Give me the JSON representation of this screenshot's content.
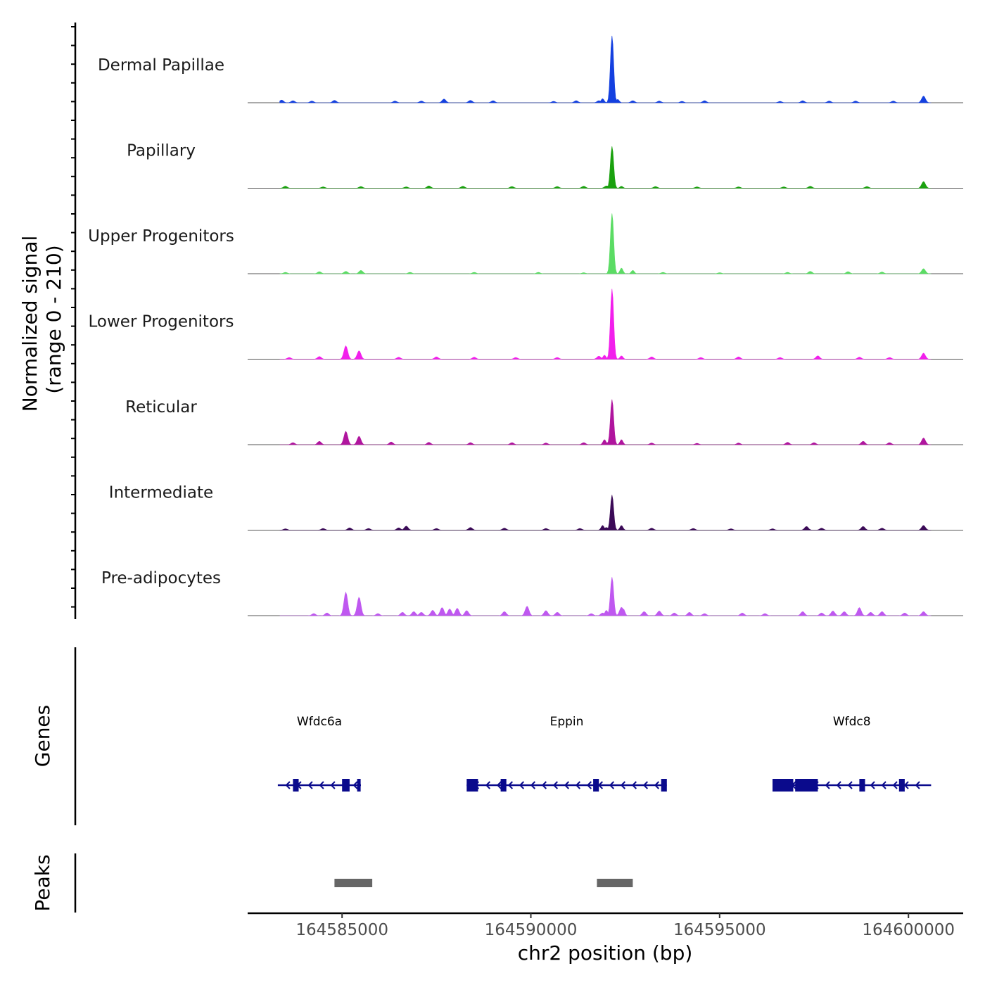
{
  "chart_data": {
    "type": "area",
    "title": "",
    "ylabel_line1": "Normalized signal",
    "ylabel_line2": "(range 0 - 210)",
    "ylim": [
      0,
      210
    ],
    "xlabel": "chr2 position (bp)",
    "xlim": [
      164582500,
      164601450
    ],
    "x_ticks": [
      164585000,
      164590000,
      164595000,
      164600000
    ],
    "x_tick_labels": [
      "164585000",
      "164590000",
      "164595000",
      "164600000"
    ],
    "tracks": [
      {
        "name": "Dermal Papillae",
        "color": "#1440E0",
        "peak_value": 200,
        "small_peaks": [
          [
            164583400,
            8
          ],
          [
            164583700,
            6
          ],
          [
            164584200,
            5
          ],
          [
            164584800,
            7
          ],
          [
            164586400,
            5
          ],
          [
            164587100,
            5
          ],
          [
            164587700,
            11
          ],
          [
            164588400,
            7
          ],
          [
            164589000,
            6
          ],
          [
            164590600,
            4
          ],
          [
            164591200,
            6
          ],
          [
            164591800,
            6
          ],
          [
            164592700,
            6
          ],
          [
            164593400,
            5
          ],
          [
            164594000,
            4
          ],
          [
            164594600,
            6
          ],
          [
            164596600,
            4
          ],
          [
            164597200,
            6
          ],
          [
            164597900,
            5
          ],
          [
            164598600,
            5
          ],
          [
            164599600,
            5
          ],
          [
            164600400,
            20
          ]
        ],
        "secondary_peaks": [
          [
            164591900,
            12
          ],
          [
            164592300,
            10
          ]
        ]
      },
      {
        "name": "Papillary",
        "color": "#1AA10E",
        "peak_value": 125,
        "small_peaks": [
          [
            164583500,
            6
          ],
          [
            164584500,
            4
          ],
          [
            164585500,
            5
          ],
          [
            164586700,
            4
          ],
          [
            164587300,
            7
          ],
          [
            164588200,
            6
          ],
          [
            164589500,
            5
          ],
          [
            164590700,
            5
          ],
          [
            164591400,
            6
          ],
          [
            164592000,
            7
          ],
          [
            164593300,
            5
          ],
          [
            164594400,
            4
          ],
          [
            164595500,
            4
          ],
          [
            164596700,
            4
          ],
          [
            164597400,
            6
          ],
          [
            164598900,
            5
          ],
          [
            164600400,
            20
          ]
        ],
        "secondary_peaks": [
          [
            164592400,
            6
          ]
        ]
      },
      {
        "name": "Upper Progenitors",
        "color": "#5BDC64",
        "peak_value": 180,
        "small_peaks": [
          [
            164583500,
            4
          ],
          [
            164584400,
            6
          ],
          [
            164585100,
            7
          ],
          [
            164585500,
            10
          ],
          [
            164586800,
            4
          ],
          [
            164588500,
            4
          ],
          [
            164590200,
            4
          ],
          [
            164591400,
            3
          ],
          [
            164593500,
            4
          ],
          [
            164595000,
            3
          ],
          [
            164596800,
            4
          ],
          [
            164597400,
            7
          ],
          [
            164598400,
            6
          ],
          [
            164599300,
            5
          ],
          [
            164600400,
            15
          ]
        ],
        "secondary_peaks": [
          [
            164592400,
            17
          ],
          [
            164592700,
            10
          ]
        ]
      },
      {
        "name": "Lower Progenitors",
        "color": "#F21FEC",
        "peak_value": 210,
        "small_peaks": [
          [
            164583600,
            5
          ],
          [
            164584400,
            8
          ],
          [
            164585100,
            40
          ],
          [
            164585450,
            25
          ],
          [
            164586500,
            6
          ],
          [
            164587500,
            7
          ],
          [
            164588500,
            6
          ],
          [
            164589600,
            5
          ],
          [
            164590700,
            5
          ],
          [
            164591800,
            9
          ],
          [
            164593200,
            7
          ],
          [
            164594500,
            5
          ],
          [
            164595500,
            7
          ],
          [
            164596600,
            5
          ],
          [
            164597600,
            10
          ],
          [
            164598700,
            6
          ],
          [
            164599500,
            5
          ],
          [
            164600400,
            18
          ]
        ],
        "secondary_peaks": [
          [
            164591950,
            12
          ],
          [
            164592400,
            10
          ]
        ]
      },
      {
        "name": "Reticular",
        "color": "#B0159E",
        "peak_value": 135,
        "small_peaks": [
          [
            164583700,
            6
          ],
          [
            164584400,
            10
          ],
          [
            164585100,
            40
          ],
          [
            164585450,
            25
          ],
          [
            164586300,
            8
          ],
          [
            164587300,
            7
          ],
          [
            164588400,
            6
          ],
          [
            164589500,
            6
          ],
          [
            164590400,
            5
          ],
          [
            164591400,
            6
          ],
          [
            164592100,
            15
          ],
          [
            164593200,
            5
          ],
          [
            164594400,
            4
          ],
          [
            164595500,
            5
          ],
          [
            164596800,
            7
          ],
          [
            164597500,
            6
          ],
          [
            164598800,
            10
          ],
          [
            164599500,
            6
          ],
          [
            164600400,
            20
          ]
        ],
        "secondary_peaks": [
          [
            164591950,
            15
          ],
          [
            164592400,
            15
          ]
        ]
      },
      {
        "name": "Intermediate",
        "color": "#3B0A57",
        "peak_value": 105,
        "small_peaks": [
          [
            164583500,
            4
          ],
          [
            164584500,
            5
          ],
          [
            164585200,
            7
          ],
          [
            164585700,
            5
          ],
          [
            164586500,
            7
          ],
          [
            164586700,
            12
          ],
          [
            164587500,
            5
          ],
          [
            164588400,
            8
          ],
          [
            164589300,
            6
          ],
          [
            164590400,
            5
          ],
          [
            164591300,
            5
          ],
          [
            164592000,
            8
          ],
          [
            164593200,
            6
          ],
          [
            164594300,
            5
          ],
          [
            164595300,
            4
          ],
          [
            164596400,
            4
          ],
          [
            164597300,
            11
          ],
          [
            164597700,
            6
          ],
          [
            164598800,
            11
          ],
          [
            164599300,
            6
          ],
          [
            164600400,
            14
          ]
        ],
        "secondary_peaks": [
          [
            164591900,
            14
          ],
          [
            164592400,
            14
          ]
        ]
      },
      {
        "name": "Pre-adipocytes",
        "color": "#BF58F0",
        "peak_value": 115,
        "small_peaks": [
          [
            164584250,
            6
          ],
          [
            164584600,
            8
          ],
          [
            164585100,
            70
          ],
          [
            164585450,
            55
          ],
          [
            164585950,
            6
          ],
          [
            164586600,
            10
          ],
          [
            164586900,
            12
          ],
          [
            164587100,
            10
          ],
          [
            164587400,
            16
          ],
          [
            164587650,
            24
          ],
          [
            164587850,
            20
          ],
          [
            164588050,
            22
          ],
          [
            164588300,
            15
          ],
          [
            164589300,
            12
          ],
          [
            164589900,
            28
          ],
          [
            164590400,
            15
          ],
          [
            164590700,
            10
          ],
          [
            164591600,
            6
          ],
          [
            164591900,
            8
          ],
          [
            164592400,
            25
          ],
          [
            164593000,
            12
          ],
          [
            164593400,
            14
          ],
          [
            164593800,
            8
          ],
          [
            164594200,
            10
          ],
          [
            164594600,
            6
          ],
          [
            164595600,
            8
          ],
          [
            164596200,
            6
          ],
          [
            164597200,
            12
          ],
          [
            164597700,
            8
          ],
          [
            164598000,
            14
          ],
          [
            164598300,
            12
          ],
          [
            164598700,
            24
          ],
          [
            164599000,
            10
          ],
          [
            164599300,
            12
          ],
          [
            164599900,
            8
          ],
          [
            164600400,
            12
          ]
        ],
        "secondary_peaks": [
          [
            164592000,
            16
          ],
          [
            164592450,
            20
          ]
        ]
      }
    ],
    "main_peak_position": 164592150,
    "genes_label": "Genes",
    "genes": [
      {
        "name": "Wfdc6a",
        "strand": "-",
        "start": 164583300,
        "end": 164585500,
        "exons": [
          [
            164583700,
            164583850
          ],
          [
            164585000,
            164585200
          ],
          [
            164585400,
            164585480
          ]
        ]
      },
      {
        "name": "Eppin",
        "strand": "-",
        "start": 164588300,
        "end": 164593600,
        "exons": [
          [
            164588300,
            164588600
          ],
          [
            164589200,
            164589350
          ],
          [
            164591650,
            164591800
          ],
          [
            164593450,
            164593600
          ]
        ]
      },
      {
        "name": "Wfdc8",
        "strand": "-",
        "start": 164596400,
        "end": 164600600,
        "exons": [
          [
            164596400,
            164596950
          ],
          [
            164597000,
            164597600
          ],
          [
            164598700,
            164598850
          ],
          [
            164599750,
            164599900
          ]
        ]
      }
    ],
    "peaks_label": "Peaks",
    "peaks": [
      [
        164584800,
        164585800
      ],
      [
        164591750,
        164592700
      ]
    ]
  }
}
